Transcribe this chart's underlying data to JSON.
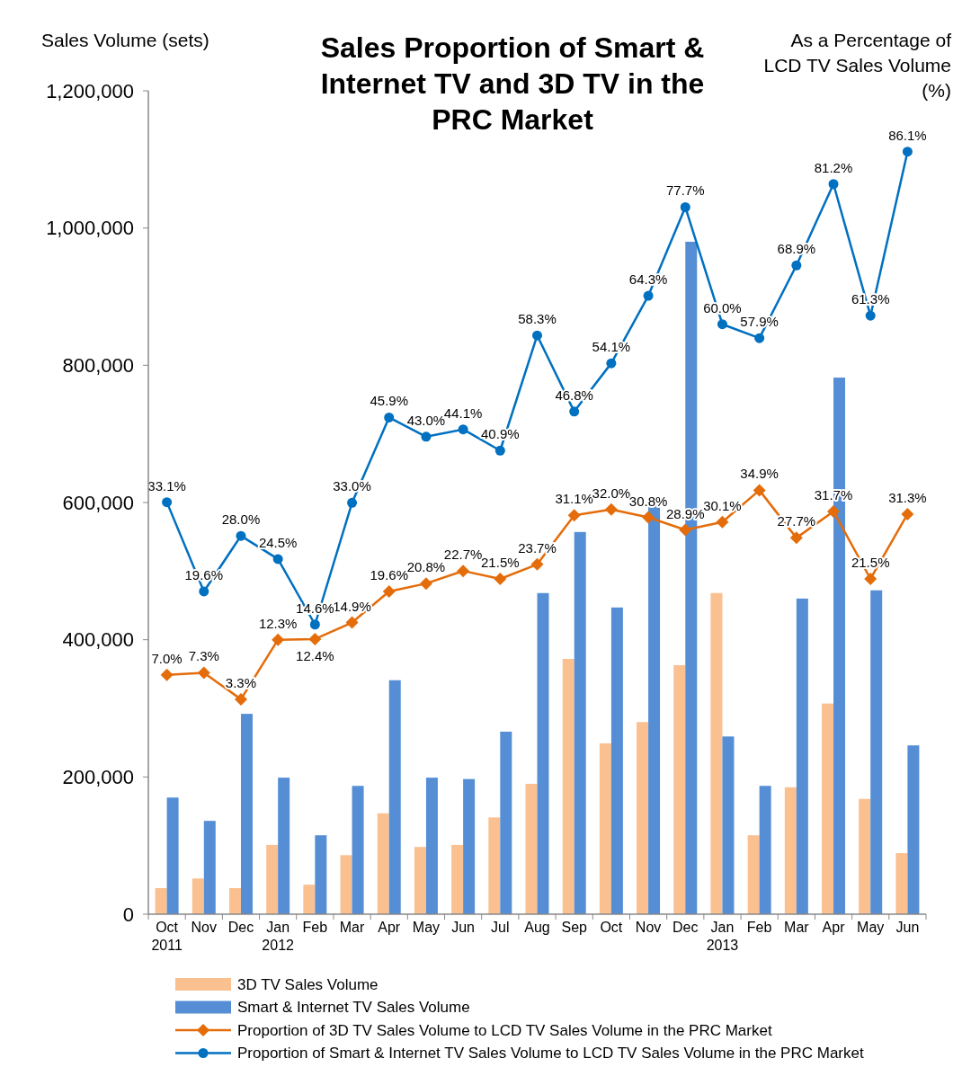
{
  "chart_data": {
    "type": "bar",
    "title": "Sales Proportion of Smart & Internet TV and 3D TV in the PRC Market",
    "ylabel": "Sales Volume (sets)",
    "y2label": "As a Percentage of LCD TV Sales Volume (%)",
    "categories": [
      "Oct\n2011",
      "Nov",
      "Dec",
      "Jan\n2012",
      "Feb",
      "Mar",
      "Apr",
      "May",
      "Jun",
      "Jul",
      "Aug",
      "Sep",
      "Oct",
      "Nov",
      "Dec",
      "Jan\n2013",
      "Feb",
      "Mar",
      "Apr",
      "May",
      "Jun"
    ],
    "ylim": [
      0,
      1200000
    ],
    "yticks": [
      0,
      {
        "value": 200000,
        "label": "200,000"
      },
      {
        "value": 400000,
        "label": "400,000"
      },
      {
        "value": 600000,
        "label": "600,000"
      },
      {
        "value": 800000,
        "label": "800,000"
      },
      {
        "value": 1000000,
        "label": "1,000,000"
      },
      {
        "value": 1200000,
        "label": "1,200,000"
      }
    ],
    "y2lim": [
      -29.2,
      95.3
    ],
    "legend": "bottom",
    "series": [
      {
        "name": "3D TV Sales Volume",
        "color": "#fac090",
        "values": [
          38000,
          52000,
          38000,
          101000,
          43000,
          86000,
          147000,
          98000,
          101000,
          141000,
          190000,
          372000,
          249000,
          280000,
          363000,
          468000,
          115000,
          185000,
          307000,
          168000,
          89000
        ]
      },
      {
        "name": "Smart & Internet TV Sales Volume",
        "color": "#558ed5",
        "values": [
          170000,
          136000,
          292000,
          199000,
          115000,
          187000,
          341000,
          199000,
          197000,
          266000,
          468000,
          557000,
          447000,
          597000,
          980000,
          259000,
          187000,
          460000,
          782000,
          472000,
          246000
        ]
      },
      {
        "name": "Proportion of 3D TV Sales Volume to LCD TV Sales Volume in the PRC Market",
        "type": "line",
        "axis": "y2",
        "marker": "diamond",
        "color": "#e46c0a",
        "values": [
          7.0,
          7.3,
          3.3,
          12.3,
          12.4,
          14.9,
          19.6,
          20.8,
          22.7,
          21.5,
          23.7,
          31.1,
          32.0,
          30.8,
          28.9,
          30.1,
          34.9,
          27.7,
          31.7,
          21.5,
          31.3
        ],
        "value_labels": [
          "7.0%",
          "7.3%",
          "3.3%",
          "12.3%",
          "12.4%",
          "14.9%",
          "19.6%",
          "20.8%",
          "22.7%",
          "21.5%",
          "23.7%",
          "31.1%",
          "32.0%",
          "30.8%",
          "28.9%",
          "30.1%",
          "34.9%",
          "27.7%",
          "31.7%",
          "21.5%",
          "31.3%"
        ]
      },
      {
        "name": "Proportion of Smart & Internet TV Sales Volume to LCD TV Sales Volume in the PRC Market",
        "type": "line",
        "axis": "y2",
        "marker": "circle",
        "color": "#0070c0",
        "values": [
          33.1,
          19.6,
          28.0,
          24.5,
          14.6,
          33.0,
          45.9,
          43.0,
          44.1,
          40.9,
          58.3,
          46.8,
          54.1,
          64.3,
          77.7,
          60.0,
          57.9,
          68.9,
          81.2,
          61.3,
          86.1
        ],
        "value_labels": [
          "33.1%",
          "19.6%",
          "28.0%",
          "24.5%",
          "14.6%",
          "33.0%",
          "45.9%",
          "43.0%",
          "44.1%",
          "40.9%",
          "58.3%",
          "46.8%",
          "54.1%",
          "64.3%",
          "77.7%",
          "60.0%",
          "57.9%",
          "68.9%",
          "81.2%",
          "61.3%",
          "86.1%"
        ]
      }
    ]
  }
}
